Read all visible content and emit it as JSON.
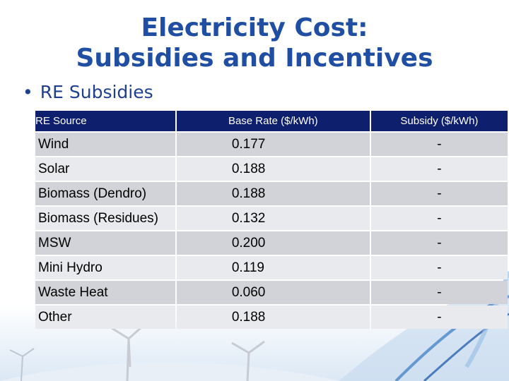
{
  "slide": {
    "title_line1": "Electricity Cost:",
    "title_line2": "Subsidies and Incentives",
    "bullet": "RE Subsidies",
    "accent_color": "#1f4ea3",
    "header_bg_color": "#0d1f6d"
  },
  "table": {
    "headers": [
      "RE Source",
      "Base Rate ($/kWh)",
      "Subsidy ($/kWh)"
    ],
    "rows": [
      {
        "source": "Wind",
        "base_rate": "0.177",
        "subsidy": "-"
      },
      {
        "source": "Solar",
        "base_rate": "0.188",
        "subsidy": "-"
      },
      {
        "source": "Biomass (Dendro)",
        "base_rate": "0.188",
        "subsidy": "-"
      },
      {
        "source": "Biomass (Residues)",
        "base_rate": "0.132",
        "subsidy": "-"
      },
      {
        "source": "MSW",
        "base_rate": "0.200",
        "subsidy": "-"
      },
      {
        "source": "Mini Hydro",
        "base_rate": "0.119",
        "subsidy": "-"
      },
      {
        "source": "Waste Heat",
        "base_rate": "0.060",
        "subsidy": "-"
      },
      {
        "source": "Other",
        "base_rate": "0.188",
        "subsidy": "-"
      }
    ]
  },
  "decor": {
    "background_image": "wind-turbines-and-blue-swoosh"
  }
}
